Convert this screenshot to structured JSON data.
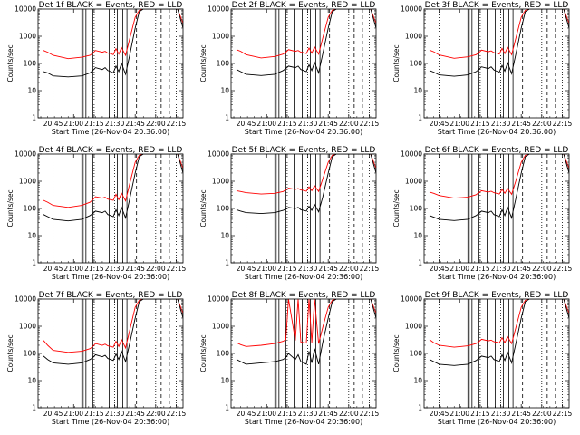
{
  "chart_data": {
    "type": "line",
    "layout": "3x3 grid",
    "x_tick_labels": [
      "20:45",
      "21:00",
      "21:15",
      "21:30",
      "21:45",
      "22:00",
      "22:15"
    ],
    "x_ticks_minutes_after_20_36": [
      9,
      24,
      39,
      54,
      69,
      84,
      99
    ],
    "xlabel": "Start Time (26-Nov-04 20:36:00)",
    "ylabel": "Counts/sec",
    "y_scale": "log",
    "ylim": [
      1,
      10000
    ],
    "y_tick_labels": [
      "1",
      "10",
      "100",
      "1000",
      "10000"
    ],
    "colors": {
      "events": "#000000",
      "lld": "#ff0000"
    },
    "panels": [
      {
        "title": "Det 1f BLACK = Events, RED = LLD",
        "events": {
          "x": [
            2,
            5,
            9,
            20,
            30,
            36,
            38,
            40,
            45,
            47,
            49,
            51,
            53,
            55,
            57,
            59,
            62,
            65,
            69,
            72,
            75,
            80,
            85,
            90,
            95,
            100,
            104
          ],
          "y": [
            50,
            45,
            35,
            32,
            35,
            45,
            55,
            70,
            60,
            70,
            55,
            50,
            45,
            80,
            50,
            100,
            40,
            200,
            2000,
            8000,
            10000,
            10000,
            10000,
            10000,
            10000,
            10000,
            2000
          ]
        },
        "lld": {
          "x": [
            2,
            5,
            9,
            20,
            30,
            36,
            38,
            40,
            45,
            47,
            49,
            51,
            53,
            55,
            57,
            59,
            62,
            65,
            69,
            72,
            75,
            80,
            85,
            90,
            95,
            100,
            104
          ],
          "y": [
            300,
            260,
            200,
            150,
            170,
            200,
            240,
            300,
            260,
            280,
            240,
            230,
            210,
            350,
            220,
            380,
            200,
            800,
            5000,
            9000,
            10000,
            10000,
            10000,
            10000,
            10000,
            10000,
            3000
          ]
        }
      },
      {
        "title": "Det 2f BLACK = Events, RED = LLD",
        "events": {
          "x": [
            2,
            5,
            9,
            20,
            30,
            36,
            38,
            40,
            45,
            47,
            49,
            51,
            53,
            55,
            57,
            59,
            62,
            65,
            69,
            72,
            75,
            80,
            85,
            90,
            95,
            100,
            104
          ],
          "y": [
            60,
            50,
            40,
            36,
            40,
            55,
            65,
            80,
            70,
            80,
            60,
            55,
            50,
            90,
            55,
            110,
            45,
            220,
            2000,
            8000,
            10000,
            10000,
            10000,
            10000,
            10000,
            10000,
            2000
          ]
        },
        "lld": {
          "x": [
            2,
            5,
            9,
            20,
            30,
            36,
            38,
            40,
            45,
            47,
            49,
            51,
            53,
            55,
            57,
            59,
            62,
            65,
            69,
            72,
            75,
            80,
            85,
            90,
            95,
            100,
            104
          ],
          "y": [
            320,
            280,
            210,
            160,
            180,
            220,
            260,
            320,
            280,
            300,
            260,
            250,
            230,
            370,
            240,
            400,
            220,
            850,
            5000,
            9000,
            10000,
            10000,
            10000,
            10000,
            10000,
            10000,
            3000
          ]
        }
      },
      {
        "title": "Det 3f BLACK = Events, RED = LLD",
        "events": {
          "x": [
            2,
            5,
            9,
            20,
            30,
            36,
            38,
            40,
            45,
            47,
            49,
            51,
            53,
            55,
            57,
            59,
            62,
            65,
            69,
            72,
            75,
            80,
            85,
            90,
            95,
            100,
            104
          ],
          "y": [
            55,
            48,
            38,
            34,
            38,
            50,
            60,
            75,
            65,
            75,
            58,
            52,
            48,
            85,
            52,
            105,
            42,
            210,
            2000,
            8000,
            10000,
            10000,
            10000,
            10000,
            10000,
            10000,
            2000
          ]
        },
        "lld": {
          "x": [
            2,
            5,
            9,
            20,
            30,
            36,
            38,
            40,
            45,
            47,
            49,
            51,
            53,
            55,
            57,
            59,
            62,
            65,
            69,
            72,
            75,
            80,
            85,
            90,
            95,
            100,
            104
          ],
          "y": [
            310,
            270,
            205,
            155,
            175,
            210,
            250,
            310,
            270,
            290,
            250,
            240,
            220,
            360,
            230,
            390,
            210,
            820,
            5000,
            9000,
            10000,
            10000,
            10000,
            10000,
            10000,
            10000,
            3000
          ]
        }
      },
      {
        "title": "Det 4f BLACK = Events, RED = LLD",
        "events": {
          "x": [
            2,
            5,
            9,
            20,
            30,
            36,
            38,
            40,
            45,
            47,
            49,
            51,
            53,
            55,
            57,
            59,
            62,
            65,
            69,
            72,
            75,
            80,
            85,
            90,
            95,
            100,
            104
          ],
          "y": [
            60,
            50,
            40,
            35,
            40,
            55,
            65,
            80,
            70,
            80,
            60,
            55,
            50,
            90,
            55,
            110,
            45,
            220,
            2000,
            8000,
            10000,
            10000,
            10000,
            10000,
            10000,
            10000,
            2000
          ]
        },
        "lld": {
          "x": [
            2,
            5,
            9,
            20,
            30,
            36,
            38,
            40,
            45,
            47,
            49,
            51,
            53,
            55,
            57,
            59,
            62,
            65,
            69,
            72,
            75,
            80,
            85,
            90,
            95,
            100,
            104
          ],
          "y": [
            200,
            170,
            130,
            110,
            130,
            170,
            210,
            270,
            240,
            260,
            220,
            210,
            200,
            330,
            210,
            360,
            190,
            800,
            5000,
            9000,
            10000,
            10000,
            10000,
            10000,
            10000,
            10000,
            3000
          ]
        }
      },
      {
        "title": "Det 5f BLACK = Events, RED = LLD",
        "events": {
          "x": [
            2,
            5,
            9,
            20,
            30,
            36,
            38,
            40,
            45,
            47,
            49,
            51,
            53,
            55,
            57,
            59,
            62,
            65,
            69,
            72,
            75,
            80,
            85,
            90,
            95,
            100,
            104
          ],
          "y": [
            90,
            80,
            70,
            65,
            70,
            85,
            95,
            110,
            100,
            110,
            90,
            85,
            80,
            120,
            85,
            140,
            75,
            260,
            2000,
            8000,
            10000,
            10000,
            10000,
            10000,
            10000,
            10000,
            2000
          ]
        },
        "lld": {
          "x": [
            2,
            5,
            9,
            20,
            30,
            36,
            38,
            40,
            45,
            47,
            49,
            51,
            53,
            55,
            57,
            59,
            62,
            65,
            69,
            72,
            75,
            80,
            85,
            90,
            95,
            100,
            104
          ],
          "y": [
            450,
            420,
            380,
            340,
            360,
            420,
            480,
            560,
            500,
            540,
            480,
            460,
            430,
            620,
            450,
            680,
            420,
            1200,
            5000,
            9000,
            10000,
            10000,
            10000,
            10000,
            10000,
            10000,
            3000
          ]
        }
      },
      {
        "title": "Det 6f BLACK = Events, RED = LLD",
        "events": {
          "x": [
            2,
            5,
            9,
            20,
            30,
            36,
            38,
            40,
            45,
            47,
            49,
            51,
            53,
            55,
            57,
            59,
            62,
            65,
            69,
            72,
            75,
            80,
            85,
            90,
            95,
            100,
            104
          ],
          "y": [
            55,
            48,
            40,
            36,
            40,
            55,
            65,
            80,
            70,
            80,
            60,
            55,
            50,
            90,
            55,
            110,
            45,
            220,
            2000,
            8000,
            10000,
            10000,
            10000,
            10000,
            10000,
            10000,
            2000
          ]
        },
        "lld": {
          "x": [
            2,
            5,
            9,
            20,
            30,
            36,
            38,
            40,
            45,
            47,
            49,
            51,
            53,
            55,
            57,
            59,
            62,
            65,
            69,
            72,
            75,
            80,
            85,
            90,
            95,
            100,
            104
          ],
          "y": [
            400,
            360,
            300,
            240,
            260,
            320,
            380,
            450,
            400,
            430,
            380,
            360,
            340,
            500,
            360,
            540,
            330,
            1000,
            5000,
            9000,
            10000,
            10000,
            10000,
            10000,
            10000,
            10000,
            3000
          ]
        }
      },
      {
        "title": "Det 7f BLACK = Events, RED = LLD",
        "events": {
          "x": [
            2,
            5,
            9,
            20,
            30,
            36,
            38,
            40,
            45,
            47,
            49,
            51,
            53,
            55,
            57,
            59,
            62,
            65,
            69,
            72,
            75,
            80,
            85,
            90,
            95,
            100,
            104
          ],
          "y": [
            80,
            60,
            45,
            40,
            45,
            60,
            70,
            90,
            75,
            85,
            65,
            60,
            55,
            95,
            60,
            120,
            50,
            230,
            2000,
            8000,
            10000,
            10000,
            10000,
            10000,
            10000,
            10000,
            2000
          ]
        },
        "lld": {
          "x": [
            2,
            5,
            9,
            20,
            30,
            36,
            38,
            40,
            45,
            47,
            49,
            51,
            53,
            55,
            57,
            59,
            62,
            65,
            69,
            72,
            75,
            80,
            85,
            90,
            95,
            100,
            104
          ],
          "y": [
            300,
            200,
            130,
            110,
            120,
            150,
            180,
            230,
            200,
            220,
            190,
            180,
            170,
            280,
            180,
            320,
            160,
            700,
            5000,
            9000,
            10000,
            10000,
            10000,
            10000,
            10000,
            10000,
            3000
          ]
        }
      },
      {
        "title": "Det 8f BLACK = Events, RED = LLD",
        "events": {
          "x": [
            2,
            5,
            9,
            20,
            30,
            36,
            38,
            40,
            45,
            47,
            49,
            51,
            53,
            55,
            57,
            59,
            62,
            65,
            69,
            72,
            75,
            80,
            85,
            90,
            95,
            100,
            104
          ],
          "y": [
            60,
            50,
            40,
            45,
            50,
            60,
            70,
            100,
            60,
            90,
            50,
            45,
            40,
            120,
            45,
            150,
            40,
            250,
            2000,
            8000,
            10000,
            10000,
            10000,
            10000,
            10000,
            10000,
            2000
          ]
        },
        "lld": {
          "x": [
            2,
            5,
            9,
            20,
            30,
            36,
            38,
            40,
            45,
            47,
            49,
            51,
            53,
            55,
            57,
            59,
            62,
            65,
            69,
            72,
            75,
            80,
            85,
            90,
            95,
            100,
            104
          ],
          "y": [
            250,
            210,
            180,
            200,
            230,
            280,
            320,
            10000,
            300,
            10000,
            260,
            250,
            240,
            10000,
            250,
            10000,
            230,
            900,
            5000,
            9000,
            10000,
            10000,
            10000,
            10000,
            10000,
            10000,
            3000
          ]
        }
      },
      {
        "title": "Det 9f BLACK = Events, RED = LLD",
        "events": {
          "x": [
            2,
            5,
            9,
            20,
            30,
            36,
            38,
            40,
            45,
            47,
            49,
            51,
            53,
            55,
            57,
            59,
            62,
            65,
            69,
            72,
            75,
            80,
            85,
            90,
            95,
            100,
            104
          ],
          "y": [
            60,
            50,
            40,
            36,
            40,
            55,
            65,
            80,
            70,
            80,
            60,
            55,
            50,
            90,
            55,
            110,
            45,
            220,
            2000,
            8000,
            10000,
            10000,
            10000,
            10000,
            10000,
            10000,
            2000
          ]
        },
        "lld": {
          "x": [
            2,
            5,
            9,
            20,
            30,
            36,
            38,
            40,
            45,
            47,
            49,
            51,
            53,
            55,
            57,
            59,
            62,
            65,
            69,
            72,
            75,
            80,
            85,
            90,
            95,
            100,
            104
          ],
          "y": [
            320,
            250,
            200,
            170,
            190,
            230,
            270,
            330,
            290,
            310,
            270,
            260,
            240,
            380,
            250,
            410,
            230,
            850,
            5000,
            9000,
            10000,
            10000,
            10000,
            10000,
            10000,
            10000,
            3000
          ]
        }
      }
    ],
    "dotted_lines_minutes": [
      9,
      39,
      54,
      84,
      99
    ],
    "solid_lines_minutes": [
      30,
      31,
      33,
      38,
      44,
      50,
      56,
      60,
      63
    ],
    "dashed_lines_minutes": [
      70,
      88,
      94
    ]
  }
}
